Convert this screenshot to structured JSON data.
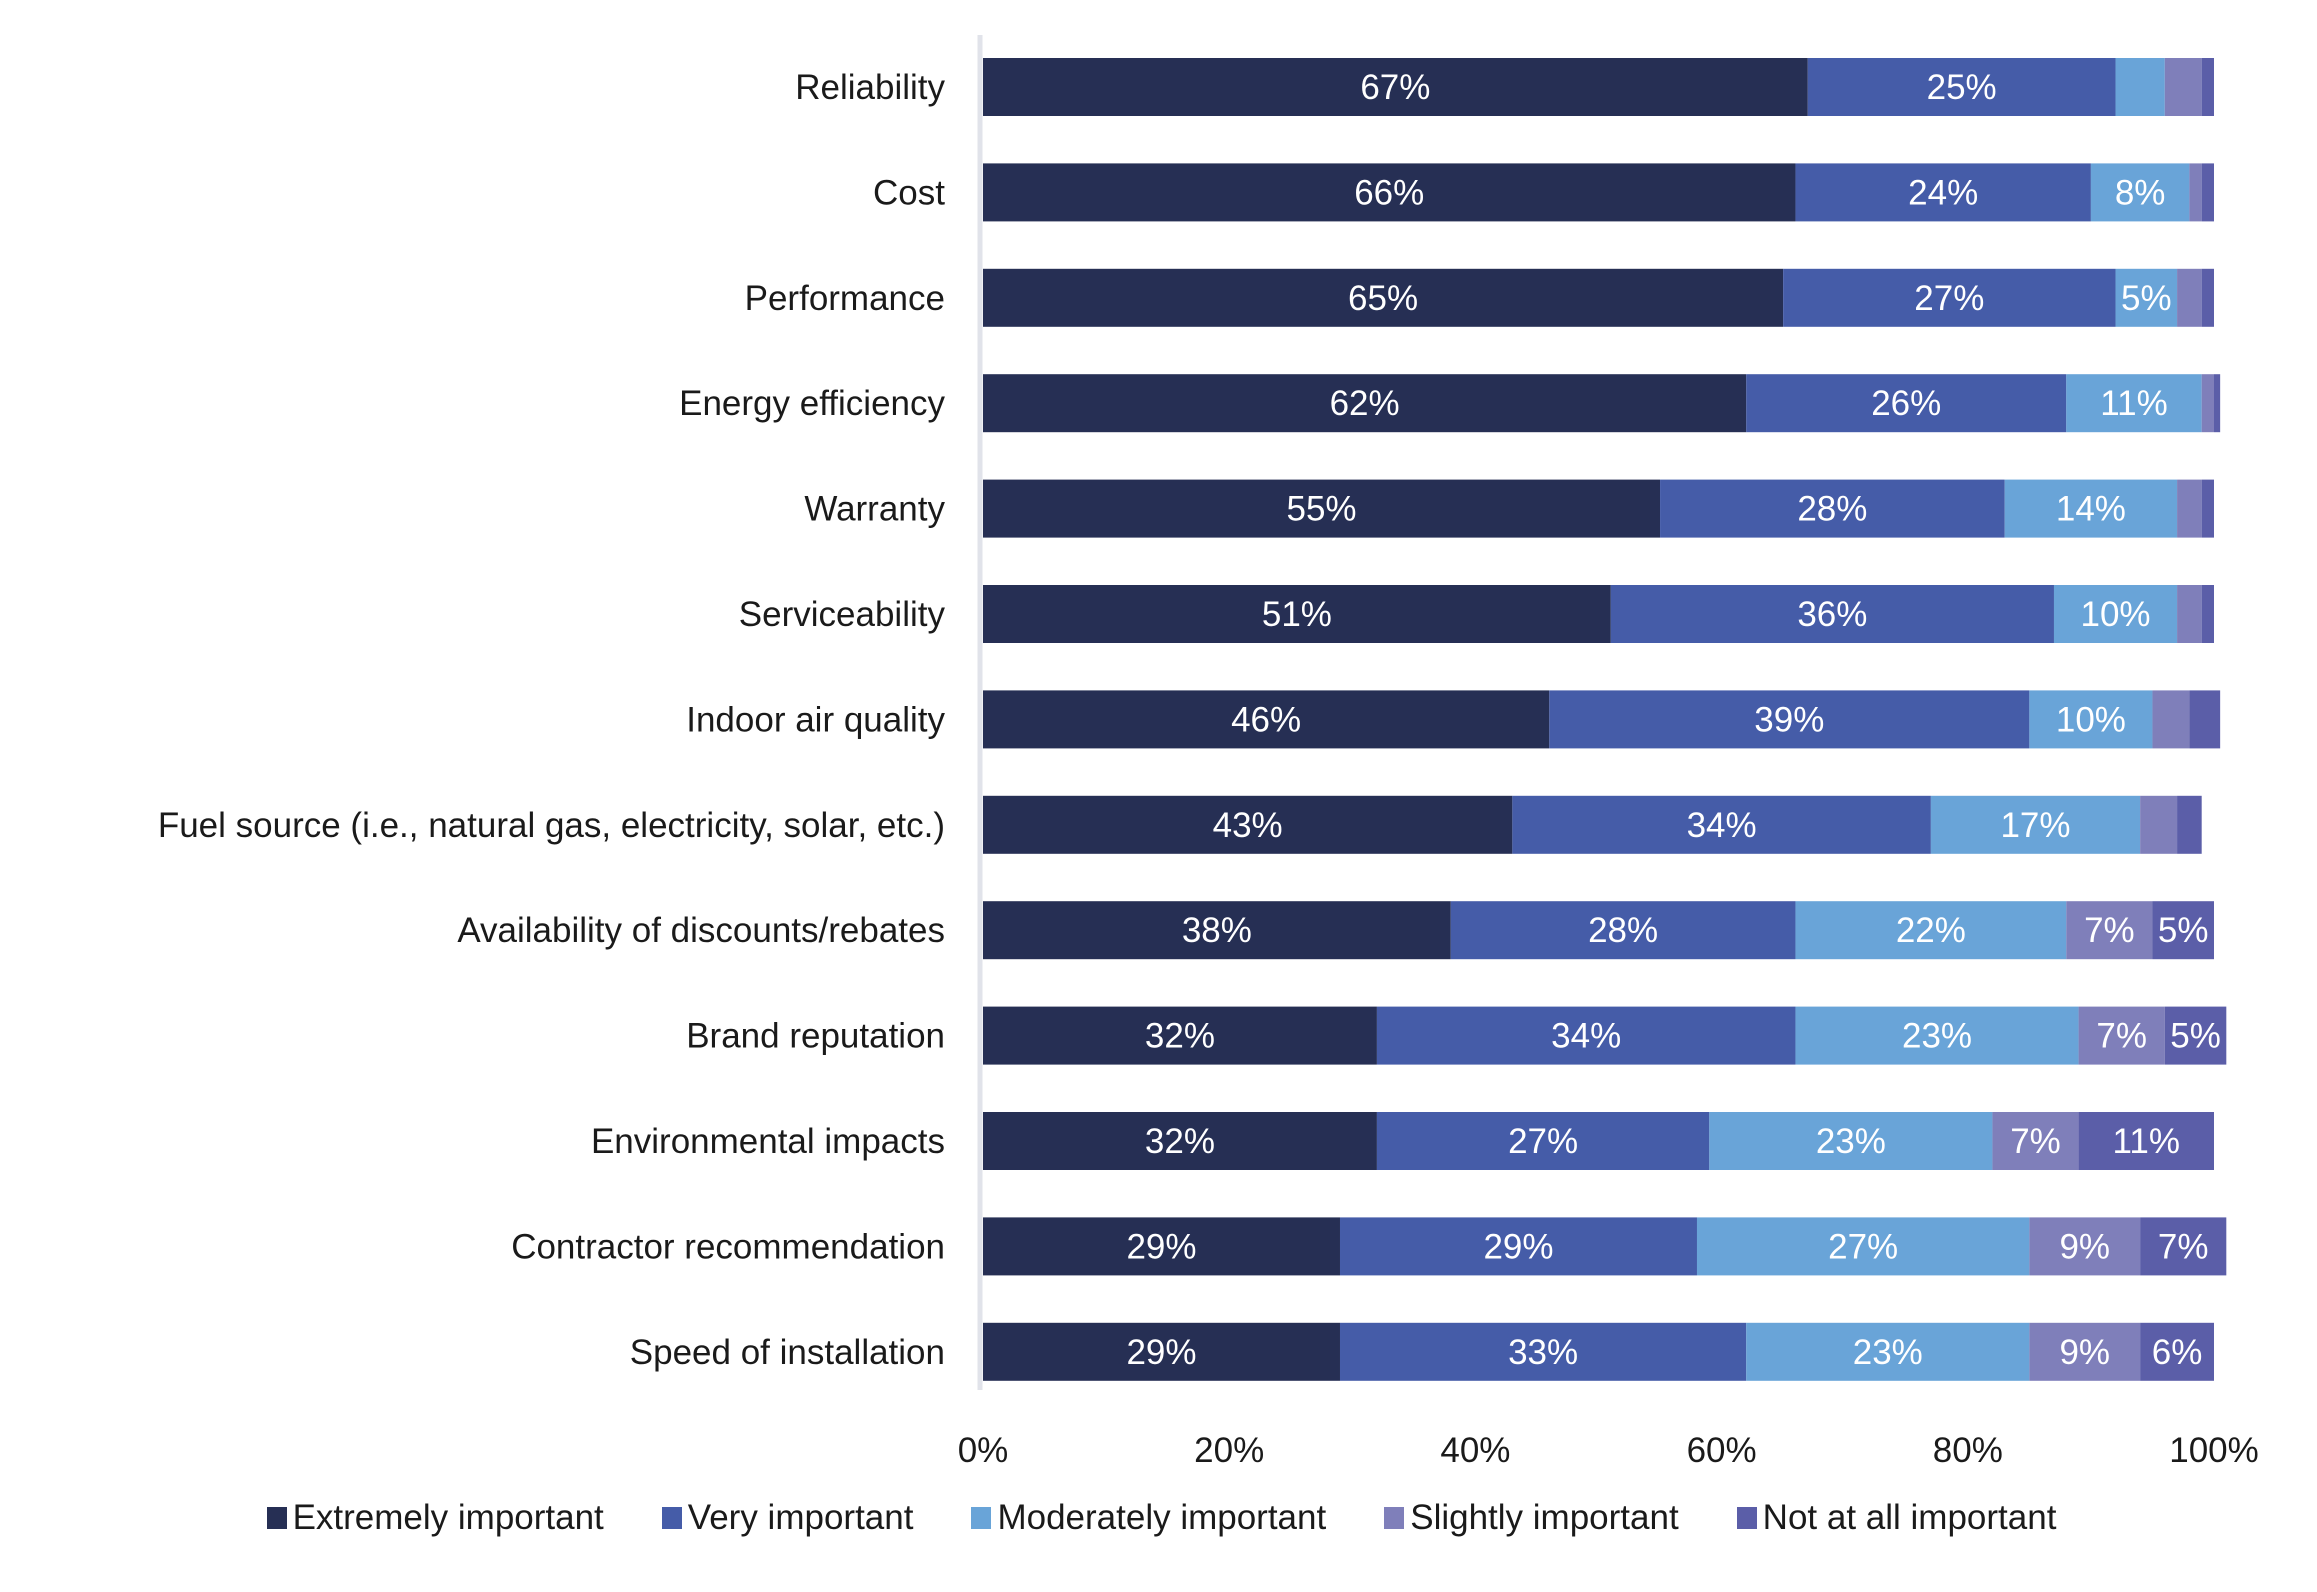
{
  "chart_data": {
    "type": "bar",
    "orientation": "horizontal",
    "stacked": true,
    "title": "",
    "xlabel": "",
    "ylabel": "",
    "xlim": [
      0,
      100
    ],
    "x_ticks": [
      "0%",
      "20%",
      "40%",
      "60%",
      "80%",
      "100%"
    ],
    "grid": false,
    "legend_position": "bottom",
    "categories": [
      "Reliability",
      "Cost",
      "Performance",
      "Energy efficiency",
      "Warranty",
      "Serviceability",
      "Indoor air quality",
      "Fuel source (i.e., natural gas, electricity, solar, etc.)",
      "Availability of discounts/rebates",
      "Brand reputation",
      "Environmental impacts",
      "Contractor recommendation",
      "Speed of installation"
    ],
    "series": [
      {
        "name": "Extremely important",
        "color": "#262f54",
        "values": [
          67,
          66,
          65,
          62,
          55,
          51,
          46,
          43,
          38,
          32,
          32,
          29,
          29
        ],
        "labels": [
          "67%",
          "66%",
          "65%",
          "62%",
          "55%",
          "51%",
          "46%",
          "43%",
          "38%",
          "32%",
          "32%",
          "29%",
          "29%"
        ]
      },
      {
        "name": "Very important",
        "color": "#455ca8",
        "values": [
          25,
          24,
          27,
          26,
          28,
          36,
          39,
          34,
          28,
          34,
          27,
          29,
          33
        ],
        "labels": [
          "25%",
          "24%",
          "27%",
          "26%",
          "28%",
          "36%",
          "39%",
          "34%",
          "28%",
          "34%",
          "27%",
          "29%",
          "33%"
        ]
      },
      {
        "name": "Moderately important",
        "color": "#69a4d8",
        "values": [
          4,
          8,
          5,
          11,
          14,
          10,
          10,
          17,
          22,
          23,
          23,
          27,
          23
        ],
        "labels": [
          "",
          "8%",
          "5%",
          "11%",
          "14%",
          "10%",
          "10%",
          "17%",
          "22%",
          "23%",
          "23%",
          "27%",
          "23%"
        ]
      },
      {
        "name": "Slightly important",
        "color": "#7f7fba",
        "values": [
          3,
          1,
          2,
          1,
          2,
          2,
          3,
          3,
          7,
          7,
          7,
          9,
          9
        ],
        "labels": [
          "",
          "",
          "",
          "",
          "",
          "",
          "",
          "",
          "7%",
          "7%",
          "7%",
          "9%",
          "9%"
        ]
      },
      {
        "name": "Not at all important",
        "color": "#5b5ea8",
        "values": [
          1,
          1,
          1,
          0.5,
          1,
          1,
          2.5,
          2,
          5,
          5,
          11,
          7,
          6
        ],
        "labels": [
          "",
          "",
          "",
          "",
          "",
          "",
          "",
          "",
          "5%",
          "5%",
          "11%",
          "7%",
          "6%"
        ]
      }
    ]
  }
}
